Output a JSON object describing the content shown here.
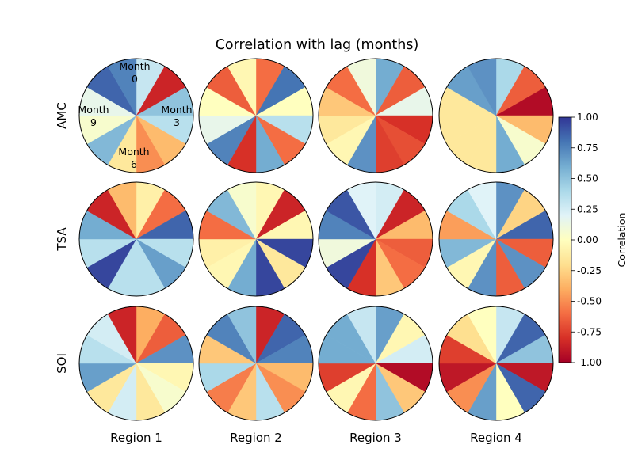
{
  "chart_data": {
    "type": "polar-heatmap",
    "title": "Correlation with lag (months)",
    "rows": [
      "AMC",
      "TSA",
      "SOI"
    ],
    "columns": [
      "Region 1",
      "Region 2",
      "Region 3",
      "Region 4"
    ],
    "lag_labels": [
      {
        "line1": "Month",
        "line2": "0"
      },
      {
        "line1": "Month",
        "line2": "3"
      },
      {
        "line1": "Month",
        "line2": "6"
      },
      {
        "line1": "Month",
        "line2": "9"
      }
    ],
    "colorbar": {
      "label": "Correlation",
      "min": -1.0,
      "max": 1.0,
      "ticks": [
        "-1.00",
        "-0.75",
        "-0.50",
        "-0.25",
        "0.00",
        "0.25",
        "0.50",
        "0.75",
        "1.00"
      ],
      "colormap": "RdYlBu"
    },
    "values": [
      [
        [
          0.3,
          -0.85,
          0.5,
          0.35,
          -0.35,
          -0.5,
          -0.15,
          0.55,
          0.05,
          0.15,
          0.85,
          0.75
        ],
        [
          -0.6,
          0.8,
          0.0,
          0.35,
          -0.6,
          0.6,
          -0.8,
          0.75,
          0.15,
          0.0,
          -0.65,
          -0.05
        ],
        [
          0.6,
          -0.65,
          0.15,
          -0.8,
          -0.7,
          -0.75,
          0.7,
          -0.05,
          -0.15,
          -0.3,
          -0.6,
          0.1
        ],
        [
          0.4,
          -0.65,
          -0.95,
          -0.35,
          0.05,
          0.6,
          -0.15,
          -0.15,
          -0.15,
          -0.15,
          0.65,
          0.7
        ]
      ],
      [
        [
          -0.1,
          -0.6,
          0.85,
          0.35,
          0.65,
          0.35,
          0.35,
          0.95,
          0.35,
          0.6,
          -0.85,
          -0.35
        ],
        [
          -0.05,
          -0.85,
          -0.05,
          0.95,
          -0.15,
          0.95,
          0.6,
          -0.05,
          -0.1,
          -0.6,
          0.55,
          0.05
        ],
        [
          0.25,
          -0.85,
          -0.35,
          -0.65,
          -0.6,
          -0.3,
          -0.8,
          0.95,
          0.1,
          0.75,
          0.9,
          0.2
        ],
        [
          0.7,
          -0.25,
          0.85,
          -0.65,
          0.7,
          -0.65,
          0.7,
          -0.05,
          0.55,
          -0.45,
          0.4,
          0.2
        ]
      ],
      [
        [
          -0.4,
          -0.65,
          0.7,
          -0.05,
          0.05,
          -0.15,
          0.25,
          -0.15,
          0.65,
          0.35,
          0.25,
          -0.85
        ],
        [
          -0.85,
          0.85,
          0.75,
          -0.35,
          -0.5,
          0.35,
          -0.3,
          -0.55,
          0.4,
          -0.3,
          0.75,
          0.5
        ],
        [
          0.65,
          -0.05,
          0.25,
          -0.95,
          -0.3,
          0.5,
          -0.6,
          -0.05,
          -0.75,
          0.6,
          0.6,
          0.3
        ],
        [
          0.3,
          0.85,
          0.5,
          -0.9,
          0.85,
          0.0,
          0.65,
          -0.5,
          -0.9,
          -0.75,
          -0.2,
          0.0
        ]
      ]
    ]
  }
}
